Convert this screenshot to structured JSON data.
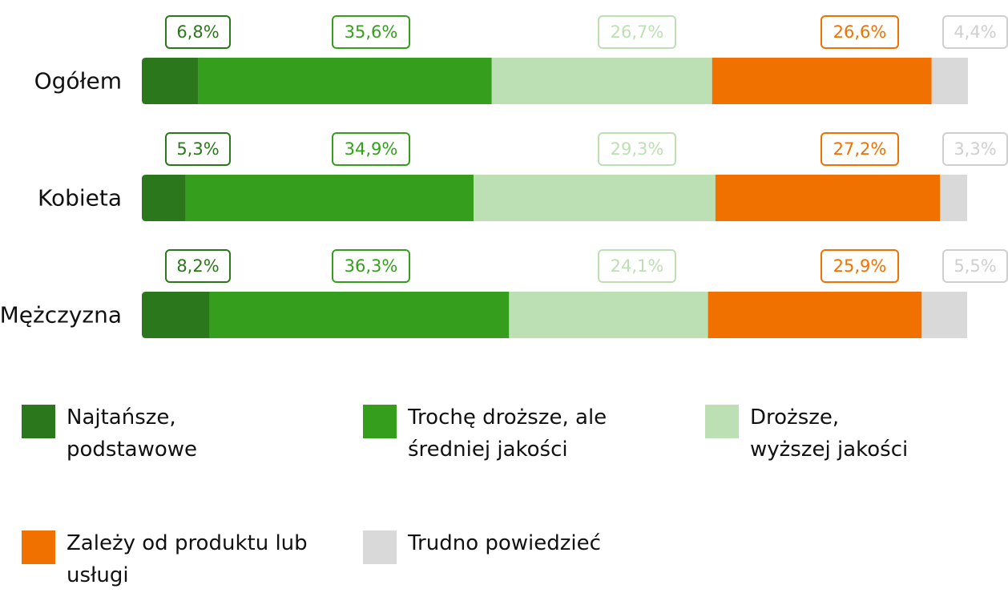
{
  "chart_data": {
    "type": "bar",
    "orientation": "horizontal",
    "stacked": true,
    "categories": [
      "Ogółem",
      "Kobieta",
      "Mężczyzna"
    ],
    "xlim": [
      0,
      100
    ],
    "series": [
      {
        "name": "Najtańsze, podstawowe",
        "color": "#2b771b",
        "label_color": "#2b771b",
        "values": [
          6.8,
          5.3,
          8.2
        ],
        "value_labels": [
          "6,8%",
          "5,3%",
          "8,2%"
        ]
      },
      {
        "name": "Trochę droższe, ale średniej jakości",
        "color": "#359f1d",
        "label_color": "#359f1d",
        "values": [
          35.6,
          34.9,
          36.3
        ],
        "value_labels": [
          "35,6%",
          "34,9%",
          "36,3%"
        ]
      },
      {
        "name": "Droższe, wyższej jakości",
        "color": "#bddfb4",
        "label_color": "#bddfb4",
        "values": [
          26.7,
          29.3,
          24.1
        ],
        "value_labels": [
          "26,7%",
          "29,3%",
          "24,1%"
        ]
      },
      {
        "name": "Zależy od produktu lub usługi",
        "color": "#f07100",
        "label_color": "#f07100",
        "values": [
          26.6,
          27.2,
          25.9
        ],
        "value_labels": [
          "26,6%",
          "27,2%",
          "25,9%"
        ]
      },
      {
        "name": "Trudno powiedzieć",
        "color": "#d9d9d9",
        "label_color": "#cfcfcf",
        "values": [
          4.4,
          3.3,
          5.5
        ],
        "value_labels": [
          "4,4%",
          "3,3%",
          "5,5%"
        ]
      }
    ]
  }
}
